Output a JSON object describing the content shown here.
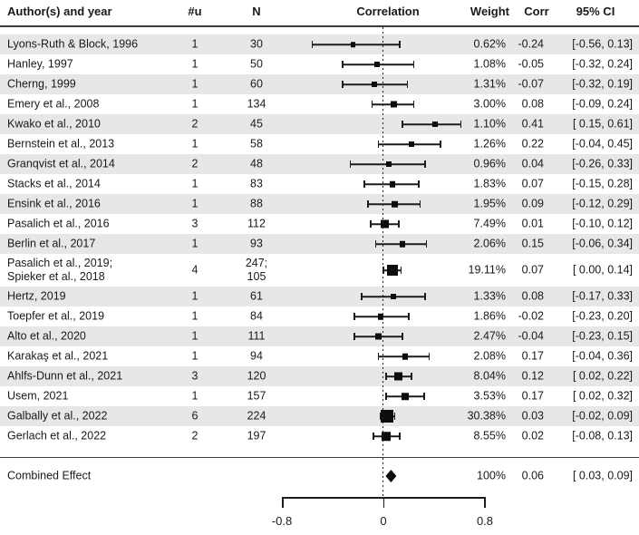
{
  "header": {
    "author": "Author(s) and year",
    "u": "#u",
    "n": "N",
    "correlation": "Correlation",
    "weight": "Weight",
    "corr": "Corr",
    "ci": "95% CI"
  },
  "chart_data": {
    "type": "forest",
    "title": "Correlation",
    "xlabel": "",
    "axis_ticks": [
      {
        "value": -0.8,
        "label": "-0.8"
      },
      {
        "value": 0,
        "label": "0"
      },
      {
        "value": 0.8,
        "label": "0.8"
      }
    ],
    "axis_range": [
      -0.8,
      0.8
    ],
    "zero_reference_line": 0,
    "studies": [
      {
        "author": "Lyons-Ruth & Block, 1996",
        "u": "1",
        "n": "30",
        "weight": 0.62,
        "weight_label": "0.62%",
        "corr": -0.24,
        "lo": -0.56,
        "hi": 0.13,
        "corr_label": "-0.24",
        "ci_label": "[-0.56, 0.13]"
      },
      {
        "author": "Hanley, 1997",
        "u": "1",
        "n": "50",
        "weight": 1.08,
        "weight_label": "1.08%",
        "corr": -0.05,
        "lo": -0.32,
        "hi": 0.24,
        "corr_label": "-0.05",
        "ci_label": "[-0.32, 0.24]"
      },
      {
        "author": "Cherng, 1999",
        "u": "1",
        "n": "60",
        "weight": 1.31,
        "weight_label": "1.31%",
        "corr": -0.07,
        "lo": -0.32,
        "hi": 0.19,
        "corr_label": "-0.07",
        "ci_label": "[-0.32, 0.19]"
      },
      {
        "author": "Emery et al., 2008",
        "u": "1",
        "n": "134",
        "weight": 3.0,
        "weight_label": "3.00%",
        "corr": 0.08,
        "lo": -0.09,
        "hi": 0.24,
        "corr_label": "0.08",
        "ci_label": "[-0.09, 0.24]"
      },
      {
        "author": "Kwako et al., 2010",
        "u": "2",
        "n": "45",
        "weight": 1.1,
        "weight_label": "1.10%",
        "corr": 0.41,
        "lo": 0.15,
        "hi": 0.61,
        "corr_label": "0.41",
        "ci_label": "[ 0.15, 0.61]"
      },
      {
        "author": "Bernstein et al., 2013",
        "u": "1",
        "n": "58",
        "weight": 1.26,
        "weight_label": "1.26%",
        "corr": 0.22,
        "lo": -0.04,
        "hi": 0.45,
        "corr_label": "0.22",
        "ci_label": "[-0.04, 0.45]"
      },
      {
        "author": "Granqvist et al., 2014",
        "u": "2",
        "n": "48",
        "weight": 0.96,
        "weight_label": "0.96%",
        "corr": 0.04,
        "lo": -0.26,
        "hi": 0.33,
        "corr_label": "0.04",
        "ci_label": "[-0.26, 0.33]"
      },
      {
        "author": "Stacks et al., 2014",
        "u": "1",
        "n": "83",
        "weight": 1.83,
        "weight_label": "1.83%",
        "corr": 0.07,
        "lo": -0.15,
        "hi": 0.28,
        "corr_label": "0.07",
        "ci_label": "[-0.15, 0.28]"
      },
      {
        "author": "Ensink et al., 2016",
        "u": "1",
        "n": "88",
        "weight": 1.95,
        "weight_label": "1.95%",
        "corr": 0.09,
        "lo": -0.12,
        "hi": 0.29,
        "corr_label": "0.09",
        "ci_label": "[-0.12, 0.29]"
      },
      {
        "author": "Pasalich et al., 2016",
        "u": "3",
        "n": "112",
        "weight": 7.49,
        "weight_label": "7.49%",
        "corr": 0.01,
        "lo": -0.1,
        "hi": 0.12,
        "corr_label": "0.01",
        "ci_label": "[-0.10, 0.12]"
      },
      {
        "author": "Berlin et al., 2017",
        "u": "1",
        "n": "93",
        "weight": 2.06,
        "weight_label": "2.06%",
        "corr": 0.15,
        "lo": -0.06,
        "hi": 0.34,
        "corr_label": "0.15",
        "ci_label": "[-0.06, 0.34]"
      },
      {
        "author": "Pasalich et al., 2019;\nSpieker et al., 2018",
        "u": "4",
        "n": "247;\n105",
        "weight": 19.11,
        "weight_label": "19.11%",
        "corr": 0.07,
        "lo": 0.0,
        "hi": 0.14,
        "corr_label": "0.07",
        "ci_label": "[ 0.00, 0.14]",
        "double": true
      },
      {
        "author": "Hertz, 2019",
        "u": "1",
        "n": "61",
        "weight": 1.33,
        "weight_label": "1.33%",
        "corr": 0.08,
        "lo": -0.17,
        "hi": 0.33,
        "corr_label": "0.08",
        "ci_label": "[-0.17, 0.33]"
      },
      {
        "author": "Toepfer et al., 2019",
        "u": "1",
        "n": "84",
        "weight": 1.86,
        "weight_label": "1.86%",
        "corr": -0.02,
        "lo": -0.23,
        "hi": 0.2,
        "corr_label": "-0.02",
        "ci_label": "[-0.23, 0.20]"
      },
      {
        "author": "Alto et al., 2020",
        "u": "1",
        "n": "111",
        "weight": 2.47,
        "weight_label": "2.47%",
        "corr": -0.04,
        "lo": -0.23,
        "hi": 0.15,
        "corr_label": "-0.04",
        "ci_label": "[-0.23, 0.15]"
      },
      {
        "author": "Karakaş et al., 2021",
        "u": "1",
        "n": "94",
        "weight": 2.08,
        "weight_label": "2.08%",
        "corr": 0.17,
        "lo": -0.04,
        "hi": 0.36,
        "corr_label": "0.17",
        "ci_label": "[-0.04, 0.36]"
      },
      {
        "author": "Ahlfs-Dunn et al., 2021",
        "u": "3",
        "n": "120",
        "weight": 8.04,
        "weight_label": "8.04%",
        "corr": 0.12,
        "lo": 0.02,
        "hi": 0.22,
        "corr_label": "0.12",
        "ci_label": "[ 0.02, 0.22]"
      },
      {
        "author": "Usem, 2021",
        "u": "1",
        "n": "157",
        "weight": 3.53,
        "weight_label": "3.53%",
        "corr": 0.17,
        "lo": 0.02,
        "hi": 0.32,
        "corr_label": "0.17",
        "ci_label": "[ 0.02, 0.32]"
      },
      {
        "author": "Galbally et al., 2022",
        "u": "6",
        "n": "224",
        "weight": 30.38,
        "weight_label": "30.38%",
        "corr": 0.03,
        "lo": -0.02,
        "hi": 0.09,
        "corr_label": "0.03",
        "ci_label": "[-0.02, 0.09]"
      },
      {
        "author": "Gerlach et al., 2022",
        "u": "2",
        "n": "197",
        "weight": 8.55,
        "weight_label": "8.55%",
        "corr": 0.02,
        "lo": -0.08,
        "hi": 0.13,
        "corr_label": "0.02",
        "ci_label": "[-0.08, 0.13]"
      }
    ],
    "combined": {
      "label": "Combined Effect",
      "corr": 0.06,
      "lo": 0.03,
      "hi": 0.09,
      "weight_label": "100%",
      "corr_label": "0.06",
      "ci_label": "[ 0.03, 0.09]"
    }
  },
  "colors": {
    "band": "#e7e7e7",
    "ink": "#1a1a1a",
    "marker": "#0d0d0d"
  }
}
